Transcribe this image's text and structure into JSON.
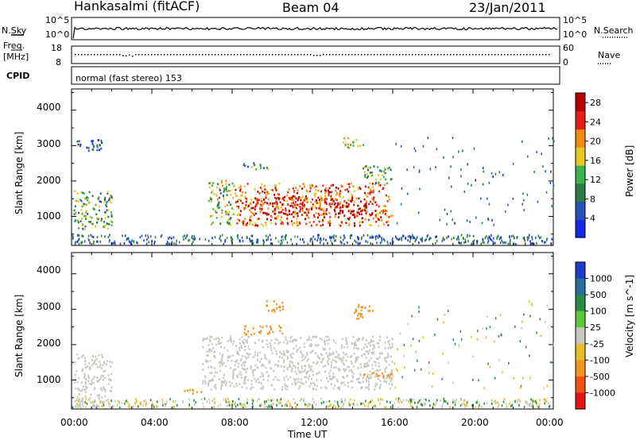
{
  "header": {
    "station": "Hankasalmi (fitACF)",
    "beam": "Beam 04",
    "date": "23/Jan/2011"
  },
  "strip": {
    "nsky_label": "N.Sky",
    "nsky_ticks": [
      "10^5",
      "10^0"
    ],
    "nsearch_label": "N.Search",
    "nsearch_ticks": [
      "10^5",
      "10^0"
    ],
    "freq_label_top": "Freq.",
    "freq_label_unit": "[MHz]",
    "freq_ticks": [
      "18",
      "8"
    ],
    "nave_label": "Nave",
    "nave_ticks": [
      "60",
      "0"
    ],
    "cpid_label": "CPID",
    "cpid_value": "normal (fast stereo) 153"
  },
  "chart_data": [
    {
      "type": "heatmap",
      "title": "",
      "xlabel": "Time UT",
      "ylabel": "Slant Range [km]",
      "x_ticks": [
        "00:00",
        "04:00",
        "08:00",
        "12:00",
        "16:00",
        "20:00",
        "00:00"
      ],
      "y_ticks": [
        "1000",
        "2000",
        "3000",
        "4000"
      ],
      "ylim": [
        180,
        4600
      ],
      "xlim_hours": [
        0,
        24
      ],
      "colorbar": {
        "label": "Power [dB]",
        "ticks": [
          "4",
          "8",
          "12",
          "16",
          "20",
          "24",
          "28"
        ],
        "range": [
          0,
          30
        ],
        "colors": [
          "#1428e6",
          "#2850b4",
          "#2a7a4a",
          "#3cb44a",
          "#e6c820",
          "#f08c14",
          "#e61e14",
          "#b40000"
        ]
      },
      "regions": [
        {
          "t0": 0.1,
          "t1": 2.0,
          "r0": 600,
          "r1": 1700,
          "value": 12
        },
        {
          "t0": 0.1,
          "t1": 1.5,
          "r0": 2800,
          "r1": 3150,
          "value": 5
        },
        {
          "t0": 6.8,
          "t1": 8.0,
          "r0": 700,
          "r1": 2000,
          "value": 14
        },
        {
          "t0": 8.0,
          "t1": 15.8,
          "r0": 700,
          "r1": 1900,
          "value": 22
        },
        {
          "t0": 9.0,
          "t1": 15.0,
          "r0": 1000,
          "r1": 1500,
          "value": 27
        },
        {
          "t0": 8.5,
          "t1": 9.8,
          "r0": 2300,
          "r1": 2500,
          "value": 10
        },
        {
          "t0": 13.5,
          "t1": 14.5,
          "r0": 2900,
          "r1": 3200,
          "value": 18
        },
        {
          "t0": 14.5,
          "t1": 16.0,
          "r0": 1900,
          "r1": 2400,
          "value": 11
        },
        {
          "t0": 15.0,
          "t1": 16.0,
          "r0": 950,
          "r1": 1150,
          "value": 20
        }
      ]
    },
    {
      "type": "heatmap",
      "title": "",
      "xlabel": "Time UT",
      "ylabel": "Slant Range [km]",
      "x_ticks": [
        "00:00",
        "04:00",
        "08:00",
        "12:00",
        "16:00",
        "20:00",
        "00:00"
      ],
      "y_ticks": [
        "1000",
        "2000",
        "3000",
        "4000"
      ],
      "ylim": [
        180,
        4600
      ],
      "xlim_hours": [
        0,
        24
      ],
      "colorbar": {
        "label": "Velocity [m s^-1]",
        "ticks": [
          "1000",
          "500",
          "100",
          "25",
          "-25",
          "-100",
          "-500",
          "-1000"
        ],
        "colors": [
          "#1e3cc8",
          "#286ea0",
          "#2a8a46",
          "#5cc83c",
          "#c8c8c0",
          "#e6be28",
          "#f0961e",
          "#f05014",
          "#e61414"
        ]
      },
      "regions": [
        {
          "t0": 0.1,
          "t1": 2.0,
          "r0": 200,
          "r1": 1700,
          "value": 0
        },
        {
          "t0": 6.5,
          "t1": 16.0,
          "r0": 700,
          "r1": 2200,
          "value": 0
        },
        {
          "t0": 8.5,
          "t1": 10.5,
          "r0": 2250,
          "r1": 2500,
          "value": -300
        },
        {
          "t0": 14.5,
          "t1": 16.0,
          "r0": 1000,
          "r1": 1200,
          "value": -300
        },
        {
          "t0": 9.5,
          "t1": 10.5,
          "r0": 2900,
          "r1": 3200,
          "value": -300
        },
        {
          "t0": 14.0,
          "t1": 15.0,
          "r0": 2700,
          "r1": 3100,
          "value": -300
        },
        {
          "t0": 5.5,
          "t1": 6.5,
          "r0": 550,
          "r1": 700,
          "value": -300
        }
      ]
    }
  ]
}
